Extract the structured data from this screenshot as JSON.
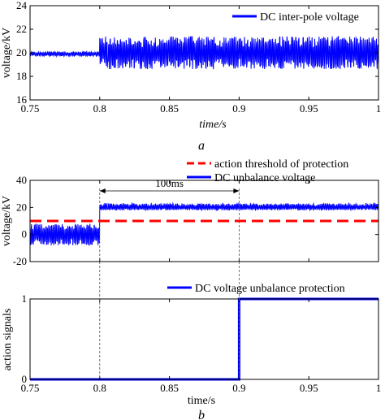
{
  "chart_data": [
    {
      "type": "line",
      "panel_label": "a",
      "xlabel": "time/s",
      "ylabel": "voltage/kV",
      "xlim": [
        0.75,
        1.0
      ],
      "ylim": [
        16,
        24
      ],
      "xticks": [
        0.75,
        0.8,
        0.85,
        0.9,
        0.95,
        1
      ],
      "xtick_labels": [
        "0.75",
        "0.8",
        "0.85",
        "0.9",
        "0.95",
        "1"
      ],
      "yticks": [
        16,
        18,
        20,
        22,
        24
      ],
      "ytick_labels": [
        "16",
        "18",
        "20",
        "22",
        "24"
      ],
      "grid": false,
      "legend_position": "top-right",
      "series": [
        {
          "name": "DC inter-pole voltage",
          "color": "#0000ff",
          "style": "noisy",
          "segments": [
            {
              "x_start": 0.75,
              "x_end": 0.8,
              "center": 19.9,
              "band_min": 19.7,
              "band_max": 20.1
            },
            {
              "x_start": 0.8,
              "x_end": 1.0,
              "center": 20.0,
              "band_min": 18.6,
              "band_max": 21.4
            }
          ]
        }
      ]
    },
    {
      "type": "line",
      "panel_label": "b",
      "ylabel": "voltage/kV",
      "xlim": [
        0.75,
        1.0
      ],
      "ylim": [
        -20,
        40
      ],
      "yticks": [
        -20,
        0,
        20,
        40
      ],
      "ytick_labels": [
        "-20",
        "0",
        "20",
        "40"
      ],
      "grid": false,
      "legend_position": "top-right",
      "annotation": {
        "text": "100ms",
        "x_start": 0.8,
        "x_end": 0.9
      },
      "series": [
        {
          "name": "action threshold of protection",
          "color": "#ff0000",
          "style": "dashed",
          "x": [
            0.75,
            1.0
          ],
          "y": [
            10,
            10
          ]
        },
        {
          "name": "DC unbalance voltage",
          "color": "#0000ff",
          "style": "noisy",
          "segments": [
            {
              "x_start": 0.75,
              "x_end": 0.8,
              "center": 0,
              "band_min": -8,
              "band_max": 8
            },
            {
              "x_start": 0.8,
              "x_end": 1.0,
              "center": 20,
              "band_min": 18,
              "band_max": 23
            }
          ]
        }
      ]
    },
    {
      "type": "line",
      "xlabel": "time/s",
      "ylabel": "action signals",
      "xlim": [
        0.75,
        1.0
      ],
      "ylim": [
        0,
        1
      ],
      "xticks": [
        0.75,
        0.8,
        0.85,
        0.9,
        0.95,
        1
      ],
      "xtick_labels": [
        "0.75",
        "0.8",
        "0.85",
        "0.9",
        "0.95",
        "1"
      ],
      "yticks": [
        0,
        1
      ],
      "ytick_labels": [
        "0",
        "1"
      ],
      "grid": false,
      "legend_position": "top-right",
      "series": [
        {
          "name": "DC voltage unbalance protection",
          "color": "#0000ff",
          "style": "step",
          "x": [
            0.75,
            0.9,
            0.9,
            1.0
          ],
          "y": [
            0,
            0,
            1,
            1
          ]
        }
      ]
    }
  ]
}
